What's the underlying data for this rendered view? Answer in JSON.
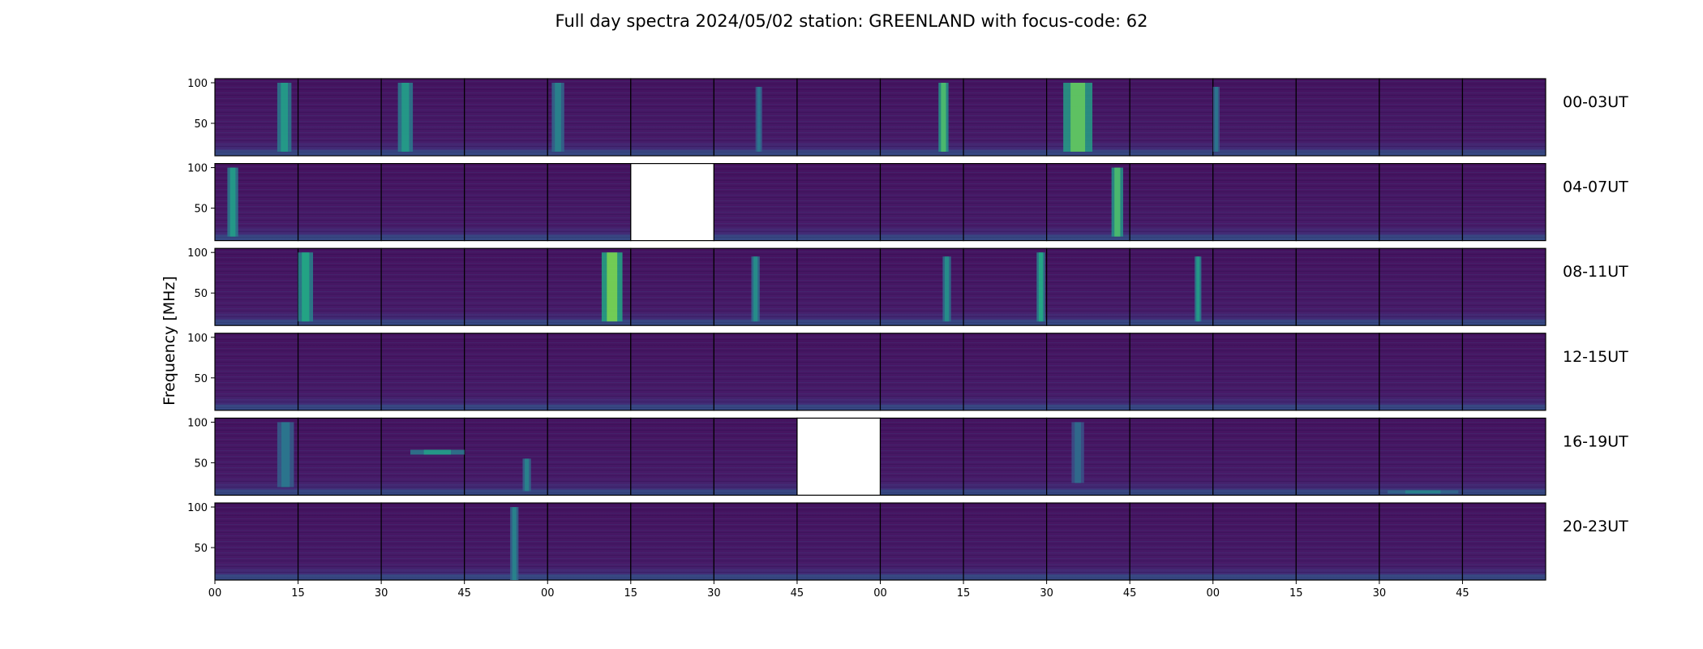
{
  "chart_data": {
    "type": "heatmap",
    "title": "Full day spectra 2024/05/02 station: GREENLAND with focus-code: 62",
    "ylabel": "Frequency [MHz]",
    "ylim": [
      10,
      105
    ],
    "yticks": [
      50,
      100
    ],
    "xtick_labels": [
      "00",
      "15",
      "30",
      "45",
      "00",
      "15",
      "30",
      "45",
      "00",
      "15",
      "30",
      "45",
      "00",
      "15",
      "30",
      "45"
    ],
    "row_labels": [
      "00-03UT",
      "04-07UT",
      "08-11UT",
      "12-15UT",
      "16-19UT",
      "20-23UT"
    ],
    "panels_per_row": 16,
    "panel_minutes": 15,
    "colormap": "viridis",
    "missing_panels": [
      {
        "row": 1,
        "col": 5
      },
      {
        "row": 4,
        "col": 7
      }
    ],
    "bursts": [
      {
        "row": 0,
        "col": 0,
        "t": [
          0.75,
          0.92
        ],
        "f": [
          15,
          100
        ],
        "i": 0.55
      },
      {
        "row": 0,
        "col": 2,
        "t": [
          0.2,
          0.38
        ],
        "f": [
          15,
          100
        ],
        "i": 0.55
      },
      {
        "row": 0,
        "col": 4,
        "t": [
          0.05,
          0.2
        ],
        "f": [
          15,
          100
        ],
        "i": 0.45
      },
      {
        "row": 0,
        "col": 6,
        "t": [
          0.5,
          0.58
        ],
        "f": [
          15,
          95
        ],
        "i": 0.4
      },
      {
        "row": 0,
        "col": 8,
        "t": [
          0.7,
          0.82
        ],
        "f": [
          15,
          100
        ],
        "i": 0.7
      },
      {
        "row": 0,
        "col": 10,
        "t": [
          0.2,
          0.55
        ],
        "f": [
          15,
          100
        ],
        "i": 0.75
      },
      {
        "row": 0,
        "col": 12,
        "t": [
          0.0,
          0.08
        ],
        "f": [
          15,
          95
        ],
        "i": 0.4
      },
      {
        "row": 1,
        "col": 0,
        "t": [
          0.15,
          0.28
        ],
        "f": [
          15,
          100
        ],
        "i": 0.55
      },
      {
        "row": 1,
        "col": 10,
        "t": [
          0.78,
          0.92
        ],
        "f": [
          15,
          100
        ],
        "i": 0.7
      },
      {
        "row": 2,
        "col": 1,
        "t": [
          0.0,
          0.18
        ],
        "f": [
          15,
          100
        ],
        "i": 0.6
      },
      {
        "row": 2,
        "col": 4,
        "t": [
          0.65,
          0.9
        ],
        "f": [
          15,
          100
        ],
        "i": 0.8
      },
      {
        "row": 2,
        "col": 6,
        "t": [
          0.45,
          0.55
        ],
        "f": [
          15,
          95
        ],
        "i": 0.5
      },
      {
        "row": 2,
        "col": 8,
        "t": [
          0.75,
          0.85
        ],
        "f": [
          15,
          95
        ],
        "i": 0.5
      },
      {
        "row": 2,
        "col": 9,
        "t": [
          0.88,
          0.98
        ],
        "f": [
          15,
          100
        ],
        "i": 0.6
      },
      {
        "row": 2,
        "col": 11,
        "t": [
          0.78,
          0.86
        ],
        "f": [
          15,
          95
        ],
        "i": 0.55
      },
      {
        "row": 4,
        "col": 0,
        "t": [
          0.75,
          0.95
        ],
        "f": [
          20,
          100
        ],
        "i": 0.4
      },
      {
        "row": 4,
        "col": 2,
        "t": [
          0.35,
          1.0
        ],
        "f": [
          60,
          66
        ],
        "i": 0.55
      },
      {
        "row": 4,
        "col": 3,
        "t": [
          0.7,
          0.8
        ],
        "f": [
          15,
          55
        ],
        "i": 0.45
      },
      {
        "row": 4,
        "col": 10,
        "t": [
          0.3,
          0.45
        ],
        "f": [
          25,
          100
        ],
        "i": 0.35
      },
      {
        "row": 4,
        "col": 14,
        "t": [
          0.1,
          0.95
        ],
        "f": [
          12,
          16
        ],
        "i": 0.45
      },
      {
        "row": 5,
        "col": 3,
        "t": [
          0.55,
          0.65
        ],
        "f": [
          10,
          100
        ],
        "i": 0.45
      }
    ]
  }
}
